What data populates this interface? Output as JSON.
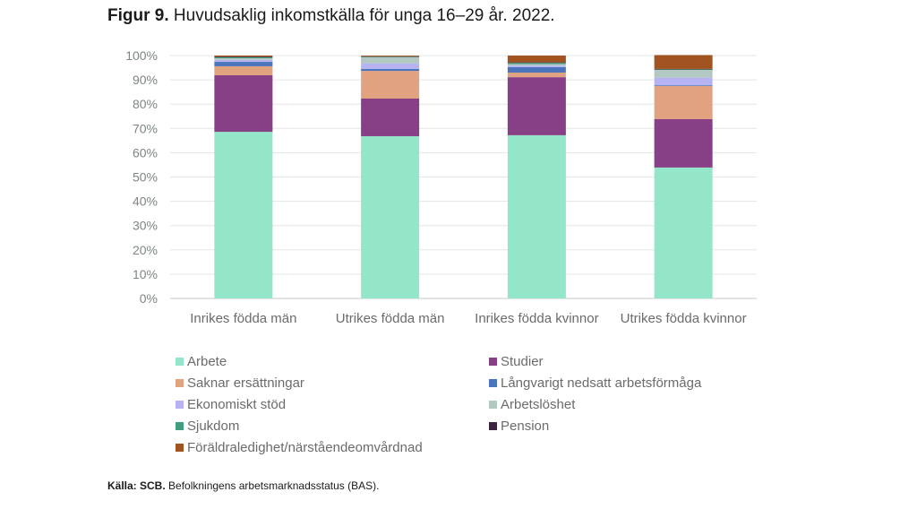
{
  "title_lead": "Figur 9.",
  "title_rest": " Huvudsaklig inkomstkälla för unga 16–29 år. 2022.",
  "source_lead": "Källa: SCB.",
  "source_rest": " Befolkningens arbetsmarknadsstatus (BAS).",
  "chart_data": {
    "type": "bar",
    "stacked": true,
    "title": "Figur 9. Huvudsaklig inkomstkälla för unga 16–29 år. 2022.",
    "xlabel": "",
    "ylabel": "",
    "ylim": [
      0,
      100
    ],
    "yticks": [
      "0%",
      "10%",
      "20%",
      "30%",
      "40%",
      "50%",
      "60%",
      "70%",
      "80%",
      "90%",
      "100%"
    ],
    "grid": true,
    "legend_position": "bottom",
    "categories": [
      "Inrikes födda män",
      "Utrikes födda män",
      "Inrikes födda kvinnor",
      "Utrikes födda kvinnor"
    ],
    "series": [
      {
        "name": "Arbete",
        "color": "#93e6c8",
        "values": [
          68.6,
          66.8,
          67.2,
          53.9
        ]
      },
      {
        "name": "Studier",
        "color": "#873f86",
        "values": [
          23.3,
          15.5,
          23.9,
          19.9
        ]
      },
      {
        "name": "Saknar ersättningar",
        "color": "#e0a27f",
        "values": [
          3.7,
          11.4,
          1.9,
          13.7
        ]
      },
      {
        "name": "Långvarigt nedsatt arbetsförmåga",
        "color": "#4a75bd",
        "values": [
          1.8,
          0.8,
          2.2,
          0.3
        ]
      },
      {
        "name": "Ekonomiskt stöd",
        "color": "#b7b2f2",
        "values": [
          0.8,
          2.2,
          0.7,
          3.0
        ]
      },
      {
        "name": "Arbetslöshet",
        "color": "#b3c7c3",
        "values": [
          0.7,
          2.6,
          0.6,
          3.3
        ]
      },
      {
        "name": "Sjukdom",
        "color": "#3f9e7d",
        "values": [
          0.4,
          0.2,
          0.5,
          0.2
        ]
      },
      {
        "name": "Pension",
        "color": "#3d2240",
        "values": [
          0.3,
          0.2,
          0.2,
          0.2
        ]
      },
      {
        "name": "Föräldraledighet/närståendeomvårdnad",
        "color": "#a1541f",
        "values": [
          0.4,
          0.3,
          2.8,
          5.7
        ]
      }
    ]
  }
}
